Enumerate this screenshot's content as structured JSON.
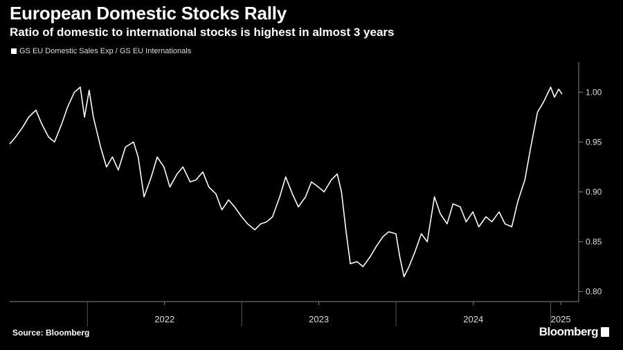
{
  "header": {
    "title": "European Domestic Stocks Rally",
    "subtitle": "Ratio of domestic to international stocks is highest in almost 3 years"
  },
  "footer": {
    "source": "Source: Bloomberg",
    "brand": "Bloomberg"
  },
  "colors": {
    "background": "#000000",
    "line": "#ffffff",
    "axis": "#888888",
    "text": "#dddddd"
  },
  "chart_data": {
    "type": "line",
    "series": [
      {
        "name": "GS EU Domestic Sales Exp / GS EU Internationals",
        "points": [
          [
            "2021-07-01",
            0.948
          ],
          [
            "2021-07-15",
            0.955
          ],
          [
            "2021-08-01",
            0.965
          ],
          [
            "2021-08-15",
            0.975
          ],
          [
            "2021-09-01",
            0.982
          ],
          [
            "2021-09-15",
            0.968
          ],
          [
            "2021-10-01",
            0.955
          ],
          [
            "2021-10-15",
            0.95
          ],
          [
            "2021-11-01",
            0.968
          ],
          [
            "2021-11-15",
            0.985
          ],
          [
            "2021-12-01",
            1.0
          ],
          [
            "2021-12-15",
            1.005
          ],
          [
            "2021-12-25",
            0.975
          ],
          [
            "2022-01-05",
            1.002
          ],
          [
            "2022-01-15",
            0.975
          ],
          [
            "2022-02-01",
            0.945
          ],
          [
            "2022-02-15",
            0.925
          ],
          [
            "2022-03-01",
            0.935
          ],
          [
            "2022-03-15",
            0.922
          ],
          [
            "2022-04-01",
            0.945
          ],
          [
            "2022-04-20",
            0.95
          ],
          [
            "2022-05-01",
            0.935
          ],
          [
            "2022-05-15",
            0.895
          ],
          [
            "2022-06-01",
            0.915
          ],
          [
            "2022-06-15",
            0.935
          ],
          [
            "2022-07-01",
            0.925
          ],
          [
            "2022-07-15",
            0.905
          ],
          [
            "2022-08-01",
            0.918
          ],
          [
            "2022-08-15",
            0.925
          ],
          [
            "2022-09-01",
            0.91
          ],
          [
            "2022-09-15",
            0.912
          ],
          [
            "2022-10-01",
            0.92
          ],
          [
            "2022-10-15",
            0.905
          ],
          [
            "2022-11-01",
            0.898
          ],
          [
            "2022-11-15",
            0.882
          ],
          [
            "2022-12-01",
            0.892
          ],
          [
            "2022-12-15",
            0.885
          ],
          [
            "2023-01-01",
            0.875
          ],
          [
            "2023-01-15",
            0.868
          ],
          [
            "2023-02-01",
            0.862
          ],
          [
            "2023-02-15",
            0.868
          ],
          [
            "2023-03-01",
            0.87
          ],
          [
            "2023-03-15",
            0.875
          ],
          [
            "2023-04-01",
            0.895
          ],
          [
            "2023-04-15",
            0.915
          ],
          [
            "2023-05-01",
            0.898
          ],
          [
            "2023-05-15",
            0.885
          ],
          [
            "2023-06-01",
            0.895
          ],
          [
            "2023-06-15",
            0.91
          ],
          [
            "2023-07-01",
            0.905
          ],
          [
            "2023-07-15",
            0.9
          ],
          [
            "2023-08-01",
            0.912
          ],
          [
            "2023-08-15",
            0.918
          ],
          [
            "2023-08-25",
            0.9
          ],
          [
            "2023-09-05",
            0.86
          ],
          [
            "2023-09-15",
            0.828
          ],
          [
            "2023-10-01",
            0.83
          ],
          [
            "2023-10-15",
            0.825
          ],
          [
            "2023-11-01",
            0.835
          ],
          [
            "2023-11-15",
            0.845
          ],
          [
            "2023-12-01",
            0.855
          ],
          [
            "2023-12-15",
            0.86
          ],
          [
            "2024-01-01",
            0.858
          ],
          [
            "2024-01-10",
            0.835
          ],
          [
            "2024-01-20",
            0.815
          ],
          [
            "2024-02-01",
            0.825
          ],
          [
            "2024-02-15",
            0.84
          ],
          [
            "2024-03-01",
            0.858
          ],
          [
            "2024-03-15",
            0.85
          ],
          [
            "2024-04-01",
            0.895
          ],
          [
            "2024-04-15",
            0.878
          ],
          [
            "2024-05-01",
            0.868
          ],
          [
            "2024-05-15",
            0.888
          ],
          [
            "2024-06-01",
            0.885
          ],
          [
            "2024-06-15",
            0.87
          ],
          [
            "2024-07-01",
            0.88
          ],
          [
            "2024-07-15",
            0.865
          ],
          [
            "2024-08-01",
            0.875
          ],
          [
            "2024-08-15",
            0.87
          ],
          [
            "2024-09-01",
            0.88
          ],
          [
            "2024-09-15",
            0.868
          ],
          [
            "2024-10-01",
            0.865
          ],
          [
            "2024-10-15",
            0.89
          ],
          [
            "2024-11-01",
            0.912
          ],
          [
            "2024-11-15",
            0.945
          ],
          [
            "2024-12-01",
            0.98
          ],
          [
            "2024-12-15",
            0.99
          ],
          [
            "2025-01-01",
            1.005
          ],
          [
            "2025-01-10",
            0.995
          ],
          [
            "2025-01-20",
            1.003
          ],
          [
            "2025-01-28",
            0.998
          ]
        ]
      }
    ],
    "x_ticks": [
      "2022",
      "2023",
      "2024",
      "2025"
    ],
    "y_ticks": [
      "0.80",
      "0.85",
      "0.90",
      "0.95",
      "1.00"
    ],
    "xlim": [
      "2021-07-01",
      "2025-02-20"
    ],
    "ylim": [
      0.79,
      1.03
    ],
    "legend": "top-left",
    "grid": false
  }
}
